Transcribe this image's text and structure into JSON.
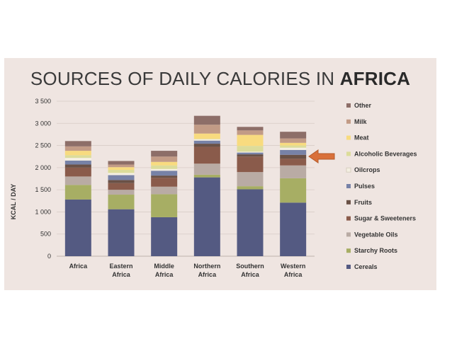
{
  "chart_data": {
    "type": "bar",
    "stacked": true,
    "title_prefix": "SOURCES OF DAILY CALORIES IN ",
    "title_emphasis": "AFRICA",
    "ylabel": "KCAL / DAY",
    "xlabel": "",
    "ylim": [
      0,
      3500
    ],
    "yticks": [
      0,
      500,
      1000,
      1500,
      2000,
      2500,
      3000,
      3500
    ],
    "ytick_labels": [
      "0",
      "500",
      "1 000",
      "1 500",
      "2 000",
      "2 500",
      "3 000",
      "3 500"
    ],
    "categories": [
      [
        "Africa"
      ],
      [
        "Eastern",
        "Africa"
      ],
      [
        "Middle",
        "Africa"
      ],
      [
        "Northern",
        "Africa"
      ],
      [
        "Southern",
        "Africa"
      ],
      [
        "Western",
        "Africa"
      ]
    ],
    "legend_position": "right",
    "series": [
      {
        "name": "Cereals",
        "color": "#545a82",
        "values": [
          1280,
          1060,
          880,
          1780,
          1510,
          1210
        ]
      },
      {
        "name": "Starchy Roots",
        "color": "#a7ae64",
        "values": [
          330,
          330,
          520,
          60,
          70,
          550
        ]
      },
      {
        "name": "Vegetable Oils",
        "color": "#b9aba4",
        "values": [
          190,
          110,
          170,
          250,
          320,
          290
        ]
      },
      {
        "name": "Sugar & Sweeteners",
        "color": "#8a5b4b",
        "values": [
          200,
          150,
          200,
          380,
          350,
          150
        ]
      },
      {
        "name": "Fruits",
        "color": "#6a5146",
        "values": [
          70,
          70,
          50,
          70,
          50,
          90
        ]
      },
      {
        "name": "Pulses",
        "color": "#7782a7",
        "values": [
          90,
          110,
          110,
          70,
          40,
          110
        ]
      },
      {
        "name": "Oilcrops",
        "color": "#f4efe2",
        "values": [
          60,
          50,
          40,
          30,
          20,
          50
        ]
      },
      {
        "name": "Alcoholic Beverages",
        "color": "#dcdc9a",
        "values": [
          60,
          70,
          80,
          10,
          130,
          50
        ]
      },
      {
        "name": "Meat",
        "color": "#f8db7f",
        "values": [
          100,
          60,
          80,
          120,
          250,
          60
        ]
      },
      {
        "name": "Milk",
        "color": "#c29b86",
        "values": [
          100,
          60,
          120,
          200,
          100,
          100
        ]
      },
      {
        "name": "Other",
        "color": "#8d6e68",
        "values": [
          120,
          80,
          130,
          200,
          80,
          150
        ]
      }
    ],
    "annotation": {
      "type": "arrow",
      "points_to": "Western Africa",
      "color": "#d9703a"
    }
  }
}
